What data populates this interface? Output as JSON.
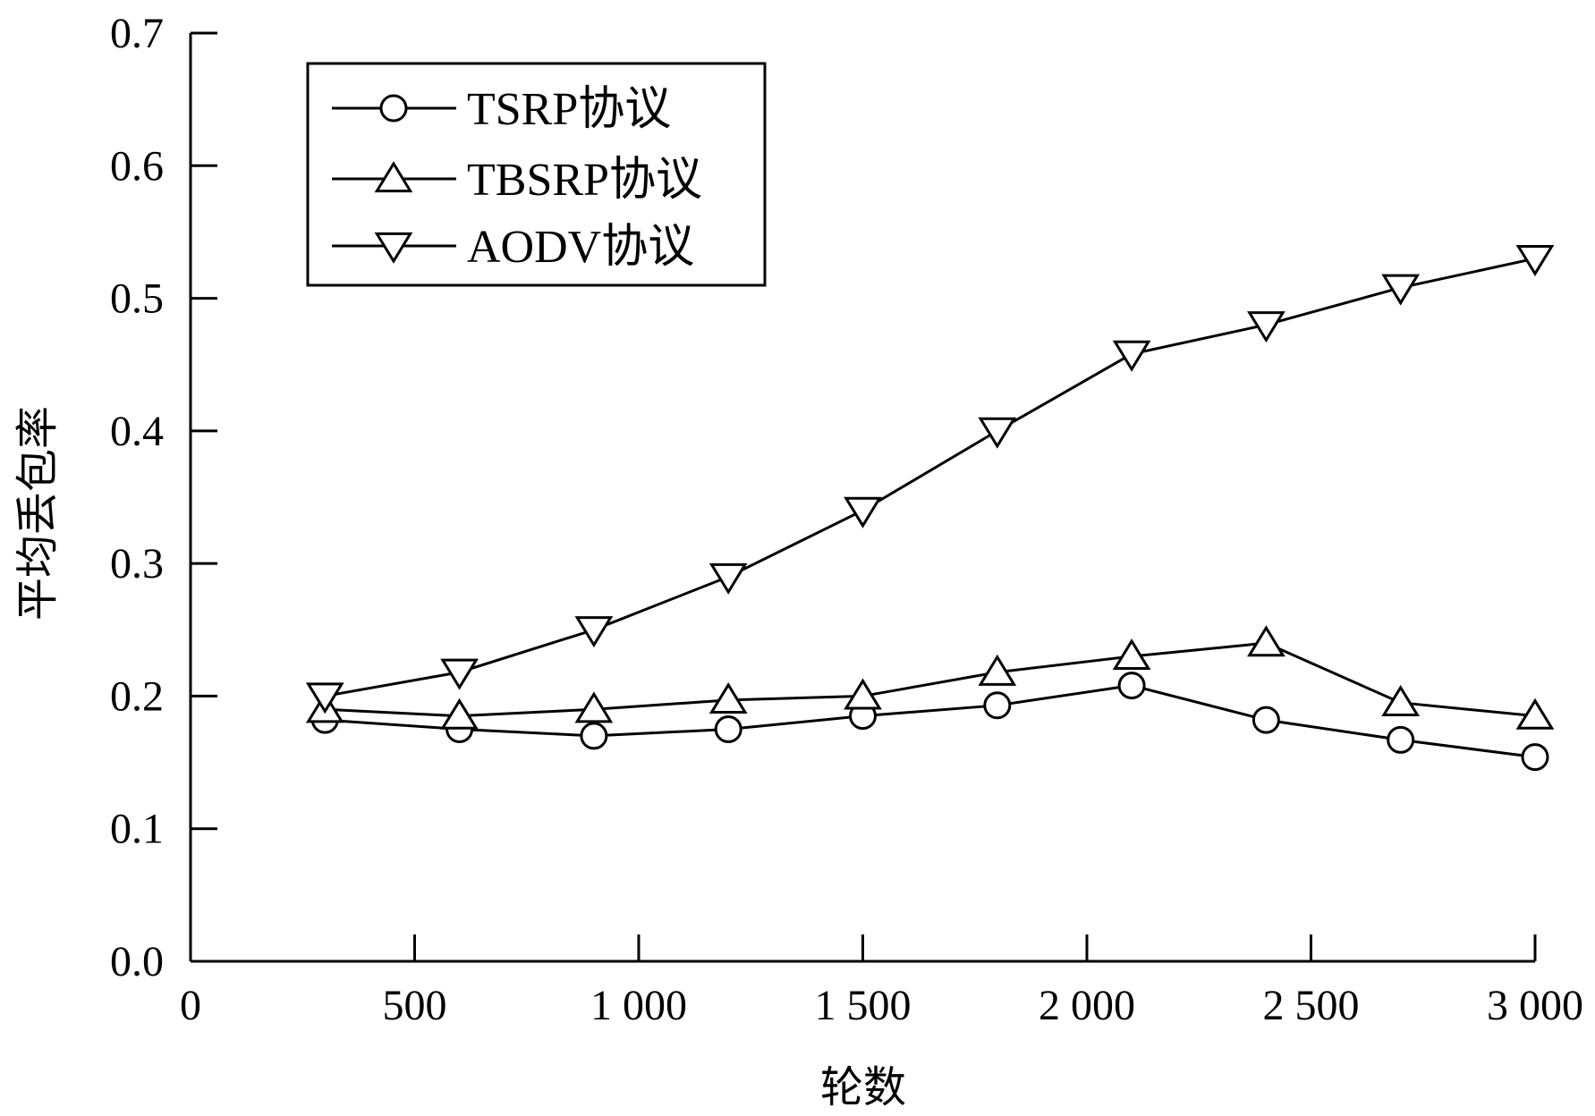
{
  "chart_data": {
    "type": "line",
    "title": "",
    "xlabel": "轮数",
    "ylabel": "平均丢包率",
    "xlim": [
      0,
      3000
    ],
    "ylim": [
      0,
      0.7
    ],
    "x_ticks": [
      {
        "value": 0,
        "label": "0"
      },
      {
        "value": 500,
        "label": "500"
      },
      {
        "value": 1000,
        "label": "1 000"
      },
      {
        "value": 1500,
        "label": "1 500"
      },
      {
        "value": 2000,
        "label": "2 000"
      },
      {
        "value": 2500,
        "label": "2 500"
      },
      {
        "value": 3000,
        "label": "3 000"
      }
    ],
    "y_ticks": [
      {
        "value": 0.0,
        "label": "0.0"
      },
      {
        "value": 0.1,
        "label": "0.1"
      },
      {
        "value": 0.2,
        "label": "0.2"
      },
      {
        "value": 0.3,
        "label": "0.3"
      },
      {
        "value": 0.4,
        "label": "0.4"
      },
      {
        "value": 0.5,
        "label": "0.5"
      },
      {
        "value": 0.6,
        "label": "0.6"
      },
      {
        "value": 0.7,
        "label": "0.7"
      }
    ],
    "grid": false,
    "legend_position": "top-left",
    "x": [
      300,
      600,
      900,
      1200,
      1500,
      1800,
      2100,
      2400,
      2700,
      3000
    ],
    "series": [
      {
        "name": "TSRP协议",
        "marker": "circle",
        "color": "#000000",
        "values": [
          0.182,
          0.175,
          0.17,
          0.175,
          0.185,
          0.193,
          0.208,
          0.182,
          0.167,
          0.154
        ]
      },
      {
        "name": "TBSRP协议",
        "marker": "triangle-up",
        "color": "#000000",
        "values": [
          0.19,
          0.185,
          0.19,
          0.197,
          0.2,
          0.218,
          0.23,
          0.24,
          0.195,
          0.185
        ]
      },
      {
        "name": "AODV协议",
        "marker": "triangle-down",
        "color": "#000000",
        "values": [
          0.2,
          0.218,
          0.25,
          0.29,
          0.34,
          0.4,
          0.458,
          0.48,
          0.508,
          0.53
        ]
      }
    ]
  }
}
